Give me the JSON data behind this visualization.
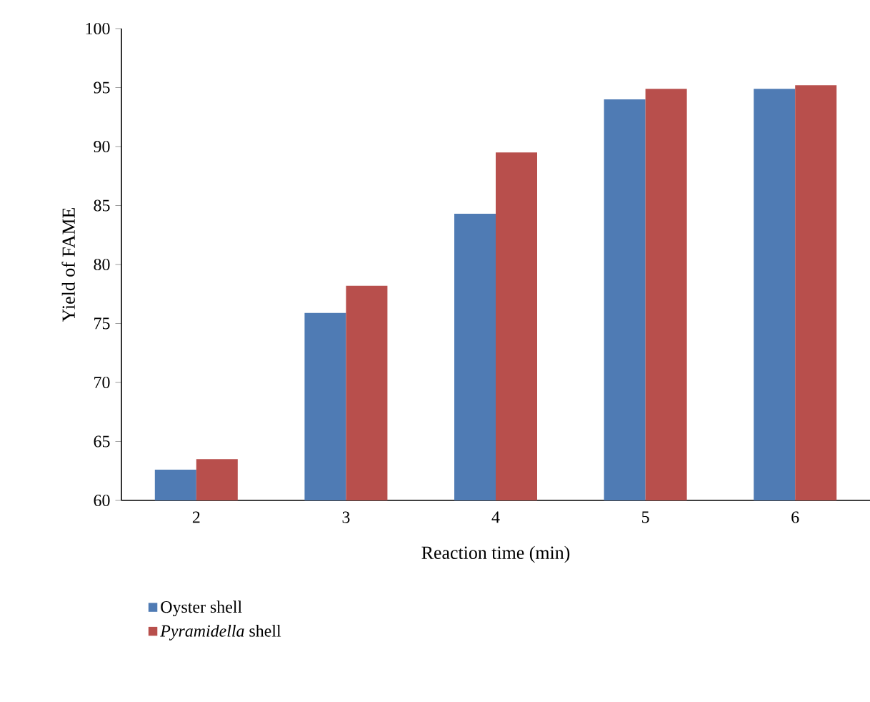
{
  "chart_data": {
    "type": "bar",
    "xlabel": "Reaction time (min)",
    "ylabel": "Yield of FAME",
    "categories": [
      "2",
      "3",
      "4",
      "5",
      "6"
    ],
    "series": [
      {
        "name": "Oyster shell",
        "color": "#4f7bb4",
        "values": [
          62.6,
          75.9,
          84.3,
          94.0,
          94.9
        ]
      },
      {
        "name": "*Pyramidella* shell",
        "color": "#b84f4c",
        "values": [
          63.5,
          78.2,
          89.5,
          94.9,
          95.2
        ]
      }
    ],
    "ylim": [
      60,
      100
    ],
    "yticks": [
      60,
      65,
      70,
      75,
      80,
      85,
      90,
      95,
      100
    ],
    "grid": false,
    "legend": "bottom"
  }
}
